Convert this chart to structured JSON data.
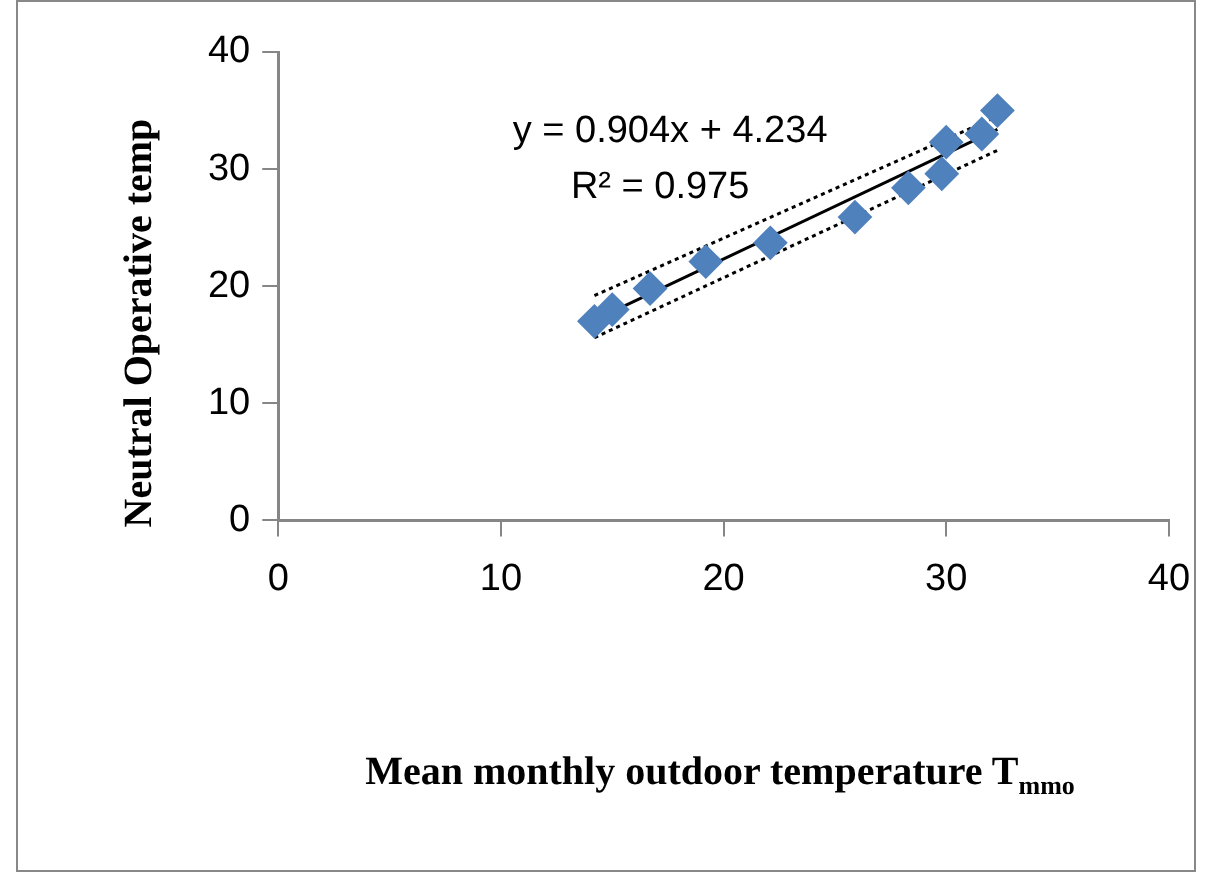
{
  "chart_data": {
    "type": "scatter",
    "xlabel": "Mean monthly outdoor temperature T$_{mmo}$",
    "ylabel": "Neutral Operative temp",
    "xlim": [
      0,
      40
    ],
    "xticks": [
      0,
      10,
      20,
      30,
      40
    ],
    "ylim": [
      0,
      40
    ],
    "yticks": [
      0,
      10,
      20,
      30,
      40
    ],
    "grid": false,
    "legend": false,
    "series": [
      {
        "marker": "diamond",
        "color": "#4f81bd",
        "x": [
          14.2,
          15,
          16.7,
          19.2,
          22.1,
          25.9,
          28.3,
          29.8,
          30,
          31.6,
          32.3
        ],
        "values": [
          17,
          18,
          19.8,
          22.1,
          23.7,
          25.9,
          28.4,
          29.6,
          32.3,
          33,
          35
        ]
      },
      {
        "type": "line",
        "marker": "none",
        "line_style": "solid",
        "color": "#000000",
        "x": [
          14.2,
          32.3
        ],
        "values": [
          17.1,
          33.4
        ]
      },
      {
        "type": "line",
        "marker": "none",
        "line_style": "dotted",
        "color": "#000000",
        "x": [
          14.2,
          32.3
        ],
        "values": [
          19.2,
          34.5
        ]
      },
      {
        "type": "line",
        "marker": "none",
        "line_style": "dotted",
        "color": "#000000",
        "x": [
          14.2,
          32.3
        ],
        "values": [
          15.6,
          31.6
        ]
      }
    ],
    "annotations": [
      "y = 0.904x + 4.234",
      "R² = 0.975"
    ]
  }
}
